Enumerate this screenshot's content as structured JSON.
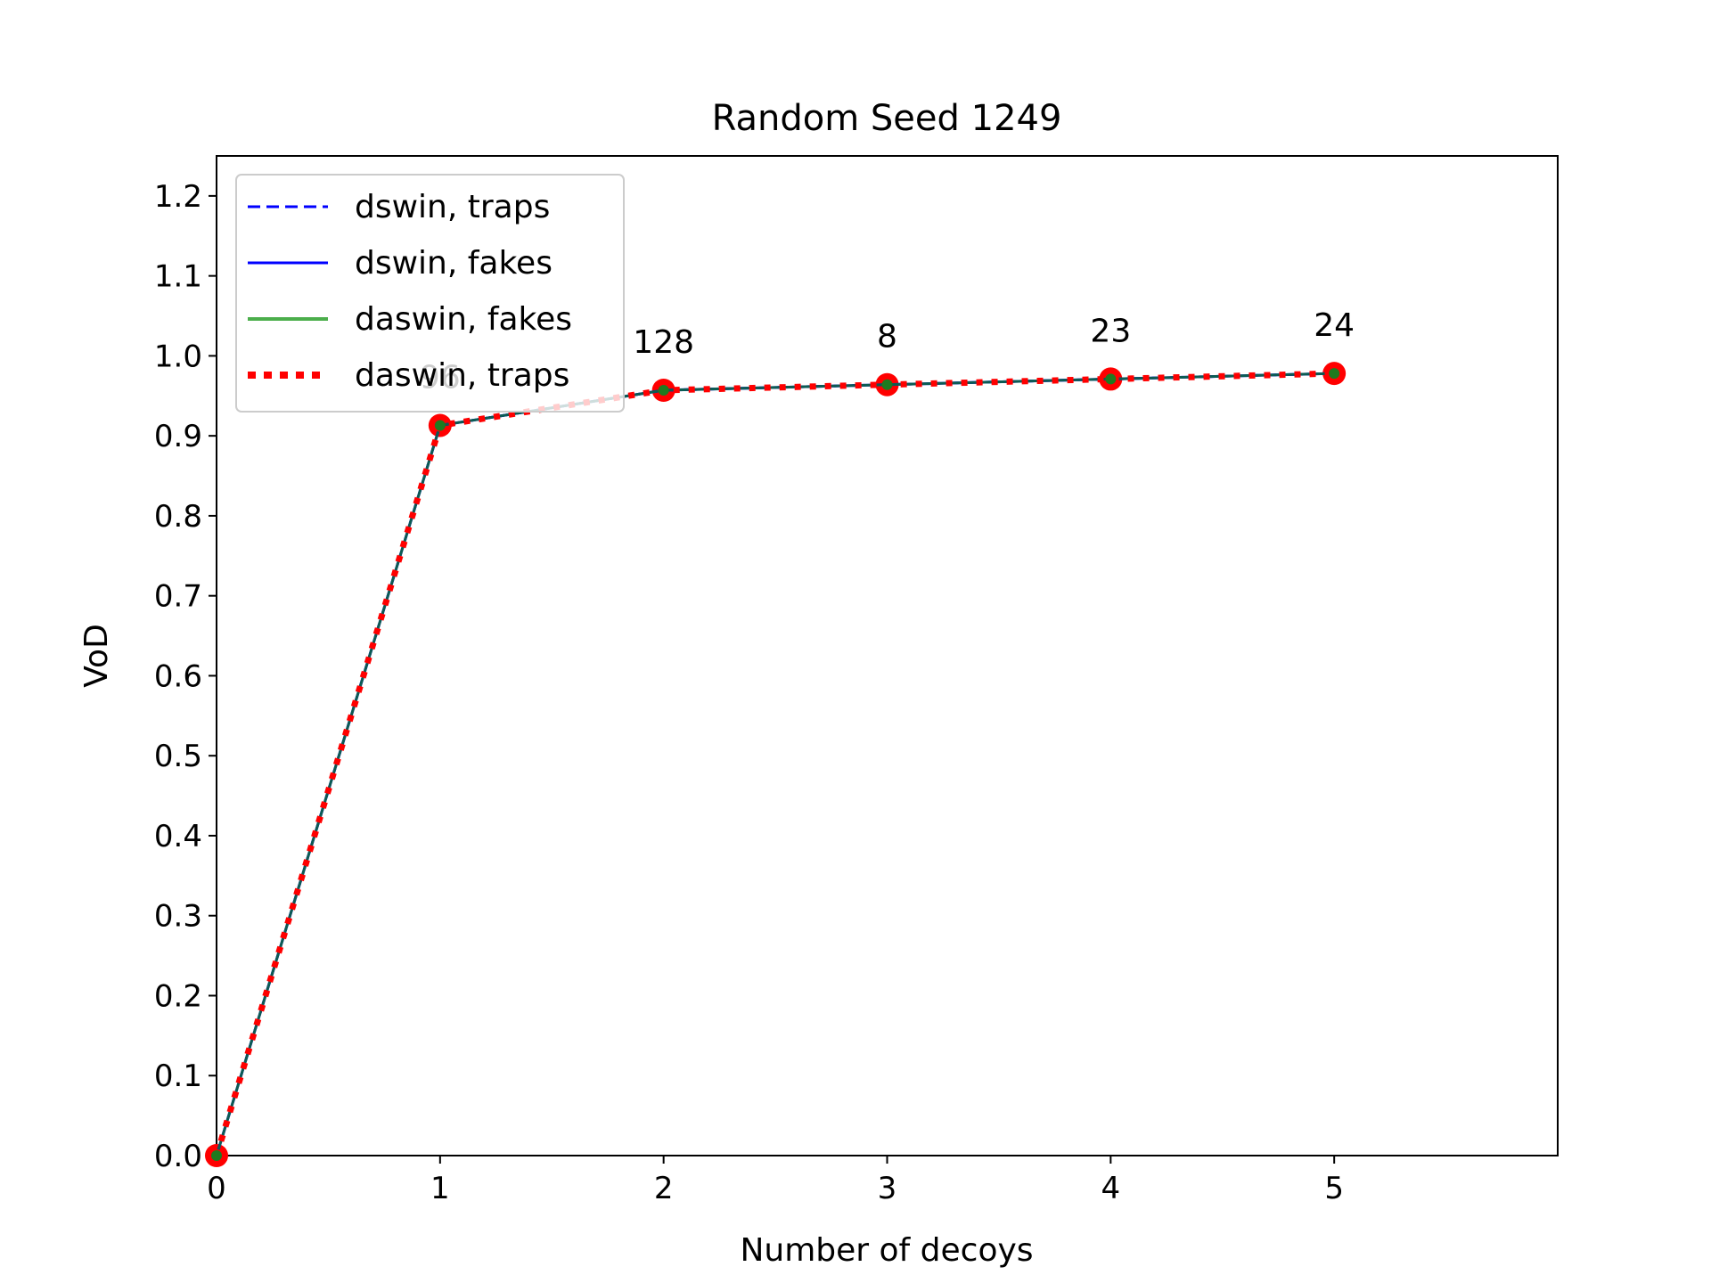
{
  "chart_data": {
    "type": "line",
    "title": "Random Seed 1249",
    "xlabel": "Number of decoys",
    "ylabel": "VoD",
    "xlim": [
      0,
      6
    ],
    "ylim": [
      0,
      1.25
    ],
    "xticks": [
      "0",
      "1",
      "2",
      "3",
      "4",
      "5"
    ],
    "yticks": [
      "0.0",
      "0.1",
      "0.2",
      "0.3",
      "0.4",
      "0.5",
      "0.6",
      "0.7",
      "0.8",
      "0.9",
      "1.0",
      "1.1",
      "1.2"
    ],
    "grid": false,
    "legend_position": "top-left",
    "x": [
      0,
      1,
      2,
      3,
      4,
      5
    ],
    "series": [
      {
        "name": "dswin, traps",
        "color": "#0000ff",
        "style": "dashed",
        "values": [
          0.0,
          0.913,
          0.957,
          0.964,
          0.971,
          0.978
        ]
      },
      {
        "name": "dswin, fakes",
        "color": "#0000ff",
        "style": "solid",
        "values": [
          0.0,
          0.913,
          0.957,
          0.964,
          0.971,
          0.978
        ]
      },
      {
        "name": "daswin, fakes",
        "color": "#2ca02c",
        "style": "solid",
        "marker": "circle",
        "values": [
          0.0,
          0.913,
          0.957,
          0.964,
          0.971,
          0.978
        ]
      },
      {
        "name": "daswin, traps",
        "color": "#ff0000",
        "style": "dotted",
        "marker": "circle",
        "values": [
          0.0,
          0.913,
          0.957,
          0.964,
          0.971,
          0.978
        ]
      }
    ],
    "annotations": [
      {
        "x": 1,
        "text": "96"
      },
      {
        "x": 2,
        "text": "128"
      },
      {
        "x": 3,
        "text": "8"
      },
      {
        "x": 4,
        "text": "23"
      },
      {
        "x": 5,
        "text": "24"
      }
    ]
  }
}
